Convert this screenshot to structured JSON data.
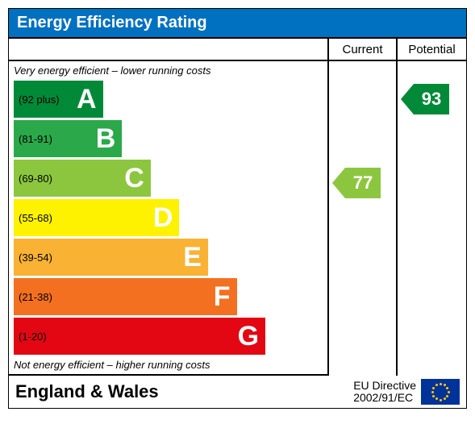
{
  "title": "Energy Efficiency Rating",
  "title_bg": "#0070c0",
  "title_color": "#ffffff",
  "columns": {
    "current": "Current",
    "potential": "Potential"
  },
  "subtitle_top": "Very energy efficient – lower running costs",
  "subtitle_bottom": "Not energy efficient – higher running costs",
  "bands": [
    {
      "letter": "A",
      "range": "(92 plus)",
      "color": "#008a38",
      "width_pct": 28,
      "letter_color": "#ffffff"
    },
    {
      "letter": "B",
      "range": "(81-91)",
      "color": "#2aa84a",
      "width_pct": 34,
      "letter_color": "#ffffff"
    },
    {
      "letter": "C",
      "range": "(69-80)",
      "color": "#8cc63f",
      "width_pct": 43,
      "letter_color": "#ffffff"
    },
    {
      "letter": "D",
      "range": "(55-68)",
      "color": "#fff200",
      "width_pct": 52,
      "letter_color": "#ffffff"
    },
    {
      "letter": "E",
      "range": "(39-54)",
      "color": "#f9b233",
      "width_pct": 61,
      "letter_color": "#ffffff"
    },
    {
      "letter": "F",
      "range": "(21-38)",
      "color": "#f37021",
      "width_pct": 70,
      "letter_color": "#ffffff"
    },
    {
      "letter": "G",
      "range": "(1-20)",
      "color": "#e30613",
      "width_pct": 79,
      "letter_color": "#ffffff"
    }
  ],
  "band_height": 46,
  "ratings": {
    "current": {
      "value": "77",
      "band_index": 2,
      "color": "#8cc63f"
    },
    "potential": {
      "value": "93",
      "band_index": 0,
      "color": "#008a38"
    }
  },
  "footer": {
    "region": "England & Wales",
    "directive_line1": "EU Directive",
    "directive_line2": "2002/91/EC",
    "flag_bg": "#003399",
    "flag_star": "#ffcc00"
  }
}
